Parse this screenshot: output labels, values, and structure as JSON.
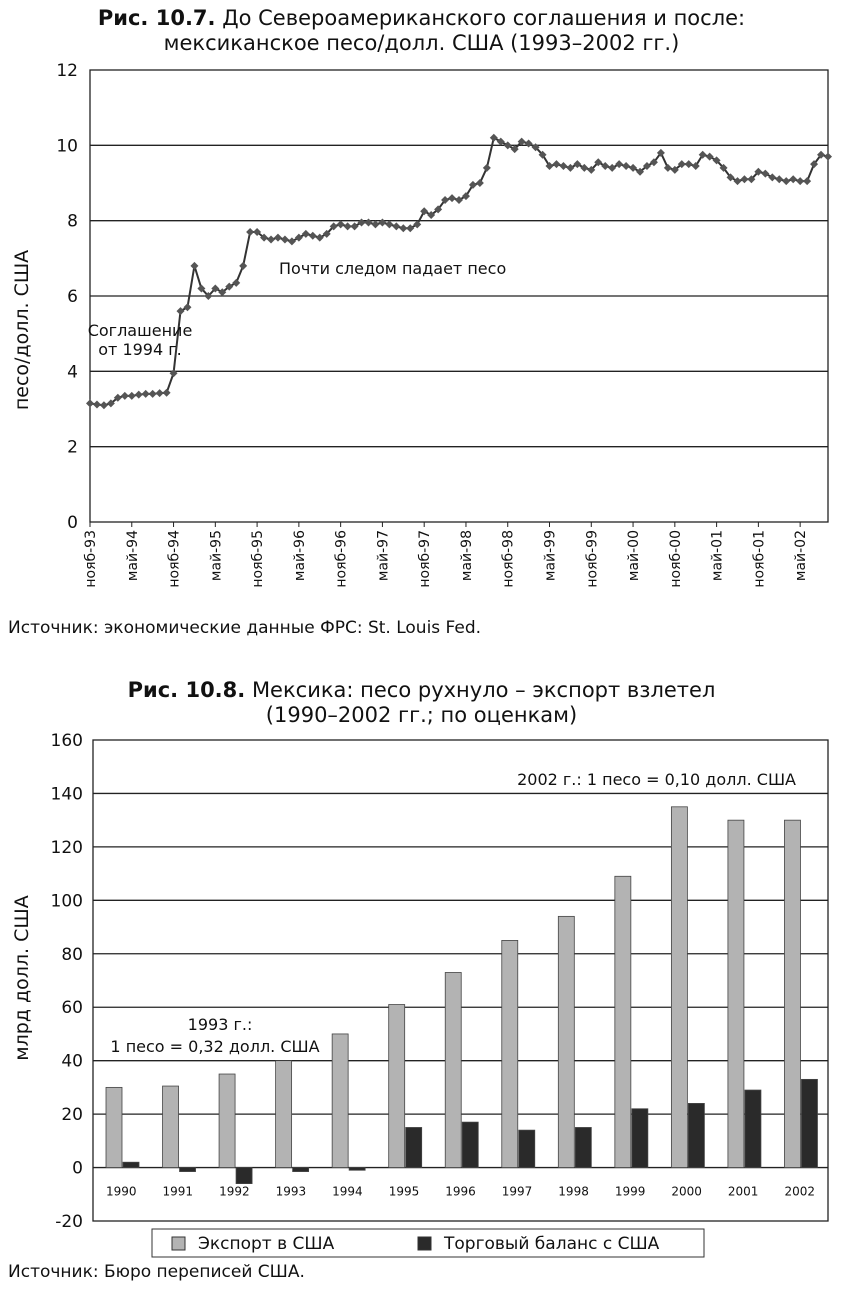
{
  "fig1": {
    "title_prefix": "Рис. 10.7.",
    "title_line1": "До Североамериканского соглашения и после:",
    "title_line2": "мексиканское песо/долл. США (1993–2002 гг.)",
    "source": "Источник: экономические данные ФРС: St. Louis Fed.",
    "annotations": [
      "Соглашение",
      "от 1994 г.",
      "Почти следом падает песо"
    ]
  },
  "fig2": {
    "title_prefix": "Рис. 10.8.",
    "title_line1": "Мексика: песо рухнуло – экспорт взлетел",
    "title_line2": "(1990–2002 гг.; по оценкам)",
    "source": "Источник: Бюро переписей США.",
    "annotations": [
      "2002 г.: 1 песо = 0,10 долл. США",
      "1993 г.:",
      "1 песо = 0,32 долл. США"
    ]
  },
  "chart_data": [
    {
      "type": "line",
      "title": "До Североамериканского соглашения и после: мексиканское песо/долл. США (1993–2002 гг.)",
      "ylabel": "песо/долл. США",
      "ylim": [
        0,
        12
      ],
      "yticks": [
        0,
        2,
        4,
        6,
        8,
        10,
        12
      ],
      "xticks": [
        "нояб-93",
        "май-94",
        "нояб-94",
        "май-95",
        "нояб-95",
        "май-96",
        "нояб-96",
        "май-97",
        "нояб-97",
        "май-98",
        "нояб-98",
        "май-99",
        "нояб-99",
        "май-00",
        "нояб-00",
        "май-01",
        "нояб-01",
        "май-02"
      ],
      "grid": true,
      "series": [
        {
          "color": "#555555",
          "values": [
            3.15,
            3.12,
            3.1,
            3.15,
            3.3,
            3.35,
            3.35,
            3.38,
            3.4,
            3.4,
            3.42,
            3.43,
            3.95,
            5.6,
            5.7,
            6.8,
            6.2,
            6.0,
            6.2,
            6.1,
            6.25,
            6.35,
            6.8,
            7.7,
            7.7,
            7.55,
            7.5,
            7.55,
            7.5,
            7.45,
            7.55,
            7.65,
            7.6,
            7.55,
            7.65,
            7.85,
            7.9,
            7.85,
            7.85,
            7.95,
            7.95,
            7.9,
            7.95,
            7.9,
            7.85,
            7.8,
            7.8,
            7.9,
            8.25,
            8.15,
            8.3,
            8.55,
            8.6,
            8.55,
            8.65,
            8.95,
            9.0,
            9.4,
            10.2,
            10.1,
            10.0,
            9.9,
            10.1,
            10.05,
            9.95,
            9.75,
            9.45,
            9.5,
            9.45,
            9.4,
            9.5,
            9.4,
            9.35,
            9.55,
            9.45,
            9.4,
            9.5,
            9.45,
            9.4,
            9.3,
            9.45,
            9.55,
            9.8,
            9.4,
            9.35,
            9.5,
            9.5,
            9.45,
            9.75,
            9.7,
            9.6,
            9.4,
            9.15,
            9.05,
            9.1,
            9.1,
            9.3,
            9.25,
            9.15,
            9.1,
            9.05,
            9.1,
            9.05,
            9.05,
            9.5,
            9.75,
            9.7
          ]
        }
      ]
    },
    {
      "type": "bar",
      "title": "Мексика: песо рухнуло – экспорт взлетел (1990–2002 гг.; по оценкам)",
      "ylabel": "млрд долл. США",
      "ylim": [
        -20,
        160
      ],
      "yticks": [
        -20,
        0,
        20,
        40,
        60,
        80,
        100,
        120,
        140,
        160
      ],
      "grid": true,
      "legend": "bottom",
      "categories": [
        "1990",
        "1991",
        "1992",
        "1993",
        "1994",
        "1995",
        "1996",
        "1997",
        "1998",
        "1999",
        "2000",
        "2001",
        "2002"
      ],
      "series": [
        {
          "name": "Экспорт в США",
          "color": "#b3b3b3",
          "values": [
            30,
            30.5,
            35,
            40,
            50,
            61,
            73,
            85,
            94,
            109,
            135,
            130,
            130
          ]
        },
        {
          "name": "Торговый баланс с США",
          "color": "#2a2a2a",
          "values": [
            2,
            -1.5,
            -6,
            -1.5,
            -1,
            15,
            17,
            14,
            15,
            22,
            24,
            29,
            33
          ]
        }
      ]
    }
  ]
}
